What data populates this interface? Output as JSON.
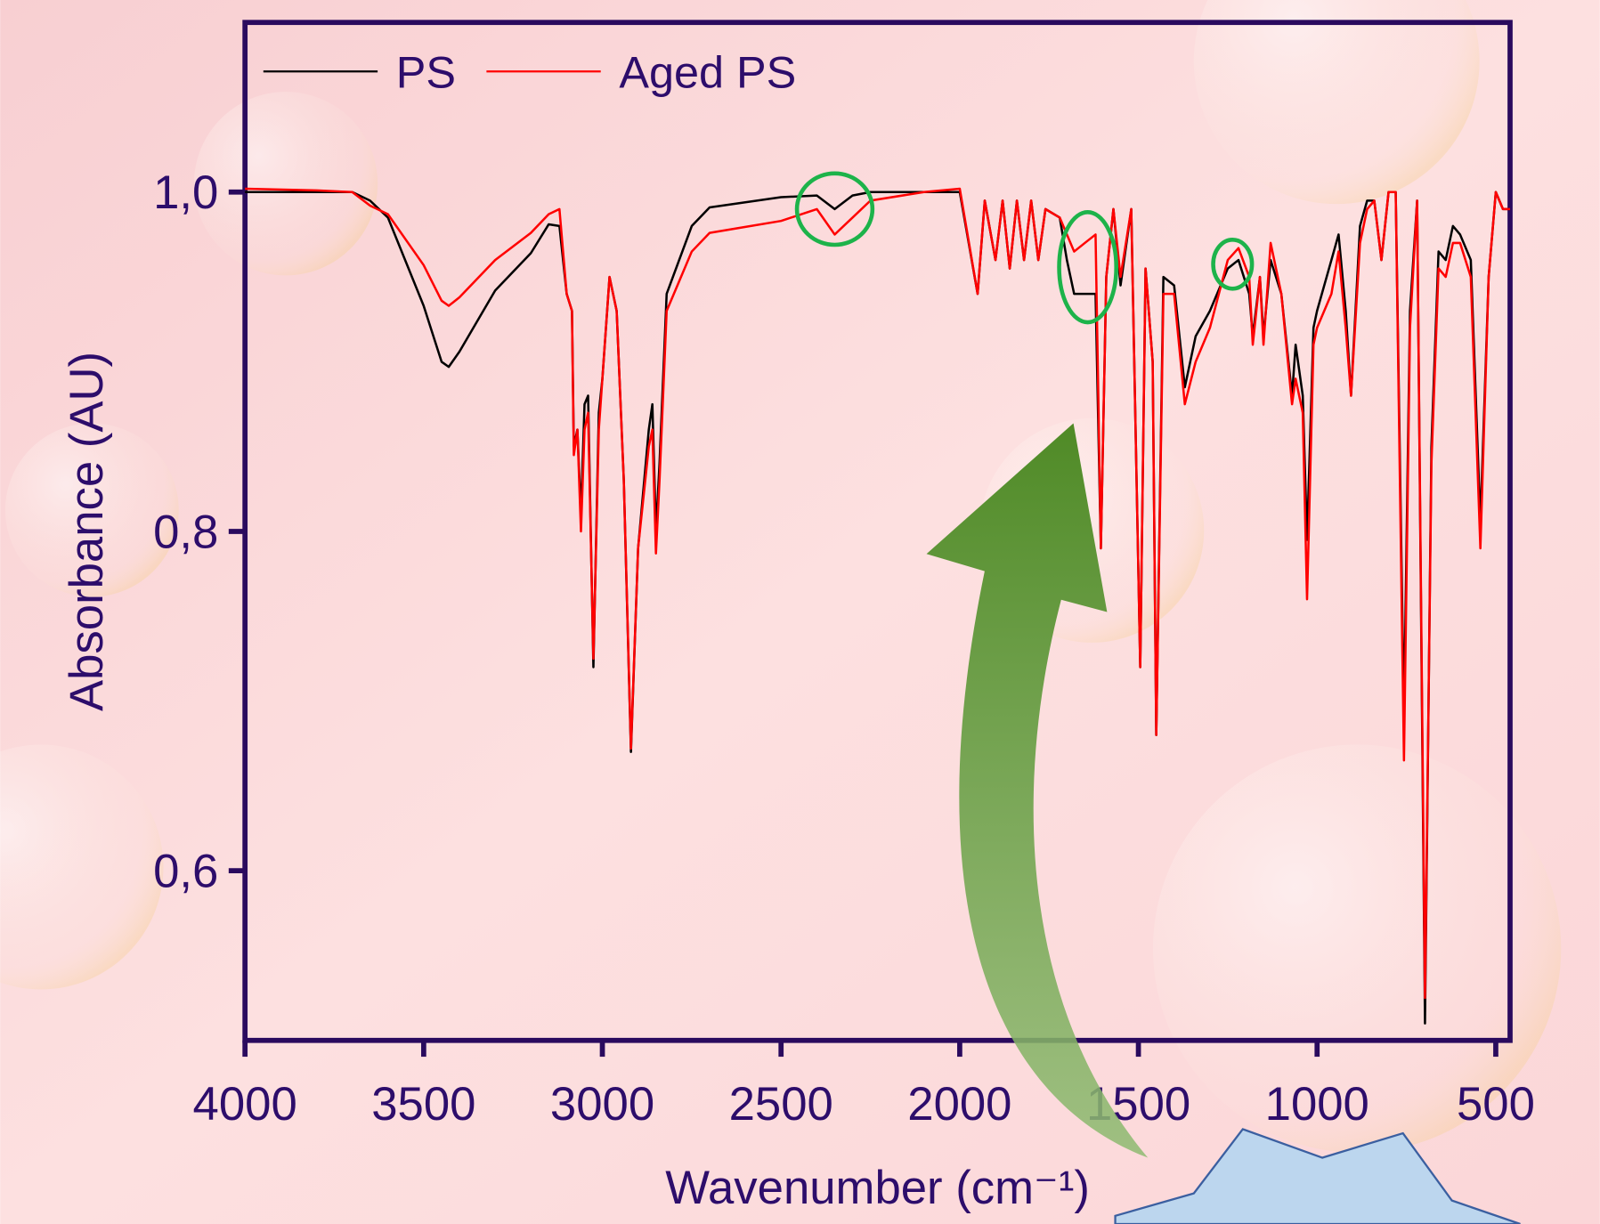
{
  "chart_data": {
    "type": "line",
    "x_label": "Wavenumber (cm⁻¹)",
    "y_label": "Absorbance (AU)",
    "xlim": [
      4000,
      460
    ],
    "ylim": [
      0.5,
      1.1
    ],
    "xticks": [
      4000,
      3500,
      3000,
      2500,
      2000,
      1500,
      1000,
      500
    ],
    "yticks": [
      {
        "value": 0.6,
        "label": "0,6"
      },
      {
        "value": 0.8,
        "label": "0,8"
      },
      {
        "value": 1.0,
        "label": "1,0"
      }
    ],
    "legend": "top-left",
    "x": [
      4000,
      3800,
      3700,
      3650,
      3600,
      3500,
      3450,
      3430,
      3400,
      3300,
      3200,
      3150,
      3120,
      3100,
      3085,
      3080,
      3070,
      3060,
      3050,
      3040,
      3025,
      3010,
      3000,
      2980,
      2960,
      2940,
      2920,
      2900,
      2870,
      2860,
      2850,
      2840,
      2820,
      2750,
      2700,
      2500,
      2400,
      2350,
      2300,
      2250,
      2100,
      2000,
      1950,
      1930,
      1900,
      1880,
      1860,
      1840,
      1820,
      1800,
      1780,
      1760,
      1720,
      1700,
      1680,
      1650,
      1620,
      1605,
      1590,
      1570,
      1550,
      1520,
      1495,
      1480,
      1460,
      1450,
      1430,
      1400,
      1370,
      1340,
      1300,
      1250,
      1220,
      1190,
      1180,
      1160,
      1150,
      1130,
      1100,
      1070,
      1060,
      1040,
      1028,
      1010,
      1000,
      960,
      940,
      920,
      905,
      880,
      860,
      840,
      820,
      800,
      780,
      757,
      740,
      720,
      698,
      680,
      660,
      640,
      620,
      600,
      570,
      543,
      520,
      500,
      480,
      460
    ],
    "series": [
      {
        "name": "PS",
        "color": "#000000",
        "values": [
          1.0,
          1.0,
          1.0,
          0.995,
          0.985,
          0.933,
          0.9,
          0.897,
          0.906,
          0.942,
          0.964,
          0.981,
          0.98,
          0.94,
          0.93,
          0.85,
          0.86,
          0.81,
          0.875,
          0.88,
          0.72,
          0.87,
          0.89,
          0.95,
          0.93,
          0.83,
          0.67,
          0.79,
          0.86,
          0.875,
          0.8,
          0.84,
          0.94,
          0.98,
          0.991,
          0.997,
          0.998,
          0.99,
          0.998,
          1.0,
          1.0,
          1.0,
          0.94,
          0.995,
          0.96,
          0.995,
          0.955,
          0.995,
          0.96,
          0.995,
          0.96,
          0.99,
          0.985,
          0.96,
          0.94,
          0.94,
          0.94,
          0.79,
          0.95,
          0.99,
          0.945,
          0.99,
          0.72,
          0.955,
          0.9,
          0.68,
          0.95,
          0.945,
          0.885,
          0.915,
          0.93,
          0.955,
          0.96,
          0.94,
          0.915,
          0.95,
          0.915,
          0.96,
          0.94,
          0.88,
          0.91,
          0.88,
          0.795,
          0.92,
          0.93,
          0.96,
          0.975,
          0.93,
          0.88,
          0.98,
          0.995,
          0.995,
          0.96,
          1.0,
          1.0,
          0.69,
          0.93,
          0.995,
          0.51,
          0.85,
          0.965,
          0.96,
          0.98,
          0.975,
          0.96,
          0.805,
          0.95,
          1.0,
          0.99,
          0.99
        ]
      },
      {
        "name": "Aged PS",
        "color": "#ff0000",
        "values": [
          1.002,
          1.001,
          1.0,
          0.992,
          0.987,
          0.957,
          0.936,
          0.933,
          0.938,
          0.96,
          0.976,
          0.987,
          0.99,
          0.94,
          0.93,
          0.845,
          0.86,
          0.8,
          0.86,
          0.87,
          0.725,
          0.86,
          0.89,
          0.95,
          0.93,
          0.83,
          0.672,
          0.79,
          0.85,
          0.86,
          0.787,
          0.83,
          0.93,
          0.965,
          0.976,
          0.983,
          0.99,
          0.975,
          0.985,
          0.995,
          1.0,
          1.002,
          0.94,
          0.995,
          0.96,
          0.995,
          0.955,
          0.995,
          0.96,
          0.995,
          0.96,
          0.99,
          0.985,
          0.975,
          0.965,
          0.97,
          0.975,
          0.79,
          0.95,
          0.99,
          0.95,
          0.99,
          0.72,
          0.955,
          0.9,
          0.68,
          0.94,
          0.94,
          0.875,
          0.9,
          0.92,
          0.96,
          0.967,
          0.95,
          0.91,
          0.95,
          0.91,
          0.97,
          0.94,
          0.875,
          0.89,
          0.87,
          0.76,
          0.91,
          0.92,
          0.94,
          0.965,
          0.92,
          0.88,
          0.97,
          0.99,
          0.995,
          0.96,
          1.0,
          1.0,
          0.665,
          0.92,
          0.995,
          0.525,
          0.84,
          0.955,
          0.95,
          0.97,
          0.97,
          0.95,
          0.79,
          0.95,
          1.0,
          0.99,
          0.99
        ]
      }
    ]
  }
}
